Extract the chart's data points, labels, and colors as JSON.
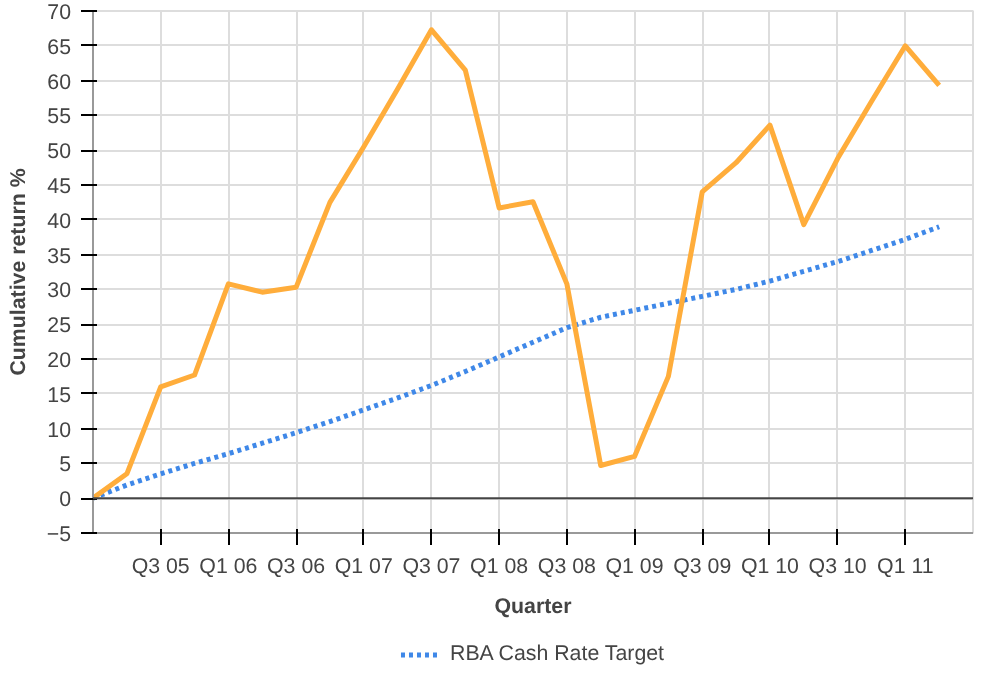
{
  "chart_data": {
    "type": "line",
    "xlabel": "Quarter",
    "ylabel": "Cumulative return %",
    "categories": [
      null,
      null,
      "Q3 05",
      null,
      "Q1 06",
      null,
      "Q3 06",
      null,
      "Q1 07",
      null,
      "Q3 07",
      null,
      "Q1 08",
      null,
      "Q3 08",
      null,
      "Q1 09",
      null,
      "Q3 09",
      null,
      "Q1 10",
      null,
      "Q3 10",
      null,
      "Q1 11",
      null
    ],
    "series": [
      {
        "name": "RBA Cash Rate Target",
        "color": "#3f88e8",
        "line_style": "dotted",
        "values": [
          0,
          1.9,
          3.5,
          5,
          6.4,
          7.9,
          9.4,
          11,
          12.7,
          14.4,
          16.2,
          18.2,
          20.3,
          22.4,
          24.5,
          26,
          27,
          28,
          29,
          30,
          31.2,
          32.6,
          34,
          35.6,
          37.2,
          39
        ]
      },
      {
        "color": "#ffad3b",
        "line_style": "solid",
        "values": [
          0,
          3.5,
          16,
          17.7,
          30.8,
          29.6,
          30.3,
          42.5,
          50.5,
          58.8,
          67.3,
          61.5,
          41.7,
          42.6,
          30.8,
          4.7,
          6,
          17.5,
          44,
          48.2,
          53.6,
          39.3,
          48.8,
          57,
          65,
          59.3
        ]
      }
    ],
    "ylim": [
      -5,
      70
    ],
    "yticks": [
      -5,
      0,
      5,
      10,
      15,
      20,
      25,
      30,
      35,
      40,
      45,
      50,
      55,
      60,
      65,
      70
    ],
    "ref_lines": [
      {
        "axis": "y",
        "value": 0,
        "color": "#444444"
      }
    ],
    "grid": true,
    "legend": "bottom",
    "marker": "none"
  }
}
